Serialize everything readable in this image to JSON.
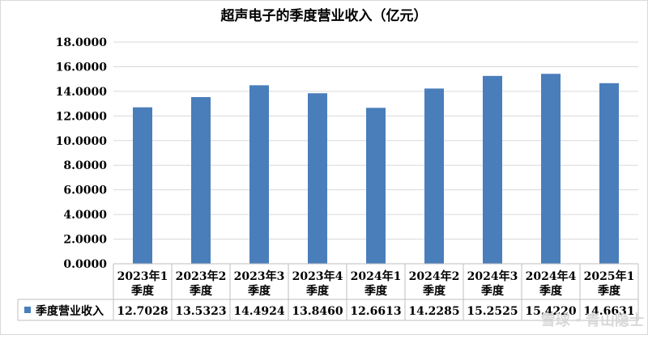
{
  "chart_data": {
    "type": "bar",
    "title": "超声电子的季度营业收入（亿元）",
    "categories": [
      [
        "2023年1",
        "季度"
      ],
      [
        "2023年2",
        "季度"
      ],
      [
        "2023年3",
        "季度"
      ],
      [
        "2023年4",
        "季度"
      ],
      [
        "2024年1",
        "季度"
      ],
      [
        "2024年2",
        "季度"
      ],
      [
        "2024年3",
        "季度"
      ],
      [
        "2024年4",
        "季度"
      ],
      [
        "2025年1",
        "季度"
      ]
    ],
    "series": [
      {
        "name": "季度营业收入",
        "color": "#4a7ebb",
        "values": [
          12.7028,
          13.5323,
          14.4924,
          13.846,
          12.6613,
          14.2285,
          15.2525,
          15.422,
          14.6631
        ],
        "labels": [
          "12.7028",
          "13.5323",
          "14.4924",
          "13.8460",
          "12.6613",
          "14.2285",
          "15.2525",
          "15.4220",
          "14.6631"
        ]
      }
    ],
    "ylim": [
      0,
      18
    ],
    "yticks": [
      "0.0000",
      "2.0000",
      "4.0000",
      "6.0000",
      "8.0000",
      "10.0000",
      "12.0000",
      "14.0000",
      "16.0000",
      "18.0000"
    ],
    "ytick_values": [
      0,
      2,
      4,
      6,
      8,
      10,
      12,
      14,
      16,
      18
    ],
    "grid": true,
    "legend_position": "bottom-left data table"
  },
  "watermark": "雪球 · 青山隐士"
}
